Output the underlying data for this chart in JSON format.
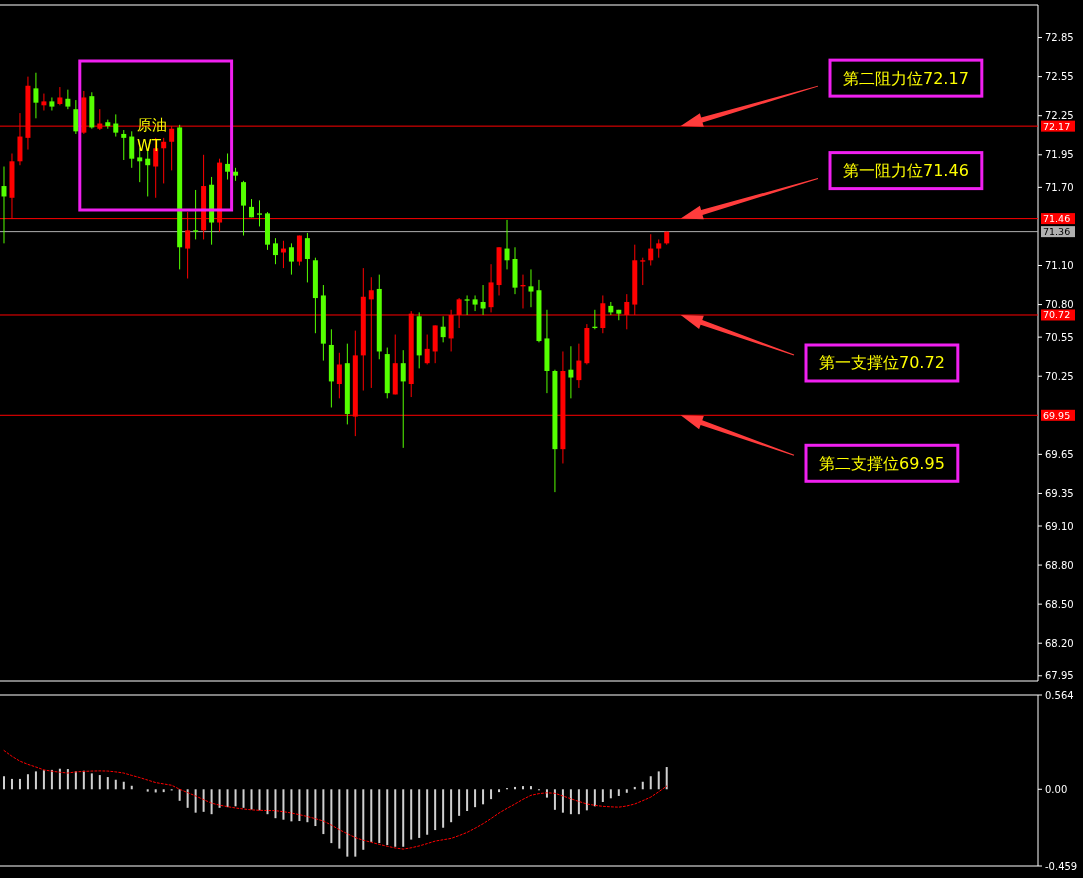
{
  "chart_data": [
    {
      "type": "candlestick",
      "title": "原油",
      "subtitle": "WT",
      "categories": [
        null,
        null,
        null,
        null,
        null,
        null,
        null,
        null,
        null,
        null,
        null,
        null,
        null,
        null,
        null,
        null,
        null,
        null,
        null,
        null,
        null,
        null,
        null,
        null,
        null,
        null,
        null,
        null,
        null,
        null,
        null,
        null,
        null,
        null,
        null,
        null,
        null,
        null,
        null,
        null,
        null,
        null,
        null,
        null,
        null,
        null,
        null,
        null,
        null,
        null,
        null,
        null,
        null,
        null,
        null,
        null,
        null,
        null,
        null,
        null,
        null,
        null,
        null,
        null,
        null,
        null,
        null,
        null,
        null,
        null,
        null,
        null,
        null,
        null,
        null,
        null,
        null,
        null,
        null,
        null,
        null,
        null,
        null,
        null,
        null,
        null,
        null,
        null,
        null,
        null,
        null,
        null,
        null,
        null,
        null,
        null,
        null,
        null,
        null,
        null,
        null,
        null,
        null,
        null,
        null,
        null,
        null,
        null,
        null,
        null,
        null,
        null,
        null,
        null,
        null,
        null,
        null,
        null,
        null,
        null,
        null,
        null,
        null,
        null,
        null,
        null,
        null,
        null,
        null,
        null
      ],
      "ohlc": [
        [
          71.71,
          71.86,
          71.27,
          71.63
        ],
        [
          71.62,
          71.96,
          71.46,
          71.9
        ],
        [
          71.9,
          72.27,
          71.87,
          72.09
        ],
        [
          72.08,
          72.55,
          71.99,
          72.48
        ],
        [
          72.46,
          72.58,
          72.23,
          72.35
        ],
        [
          72.33,
          72.42,
          72.29,
          72.36
        ],
        [
          72.36,
          72.39,
          72.29,
          72.32
        ],
        [
          72.34,
          72.47,
          72.33,
          72.39
        ],
        [
          72.38,
          72.45,
          72.3,
          72.32
        ],
        [
          72.3,
          72.37,
          72.11,
          72.13
        ],
        [
          72.12,
          72.44,
          72.11,
          72.39
        ],
        [
          72.4,
          72.43,
          72.15,
          72.16
        ],
        [
          72.15,
          72.3,
          72.14,
          72.19
        ],
        [
          72.2,
          72.22,
          72.15,
          72.17
        ],
        [
          72.19,
          72.26,
          72.09,
          72.12
        ],
        [
          72.11,
          72.14,
          71.91,
          72.08
        ],
        [
          72.09,
          72.13,
          71.85,
          71.92
        ],
        [
          71.93,
          72.0,
          71.74,
          71.9
        ],
        [
          71.92,
          71.99,
          71.63,
          71.87
        ],
        [
          71.86,
          72.08,
          71.62,
          72.0
        ],
        [
          72.0,
          72.08,
          71.73,
          72.05
        ],
        [
          72.05,
          72.17,
          71.83,
          72.15
        ],
        [
          72.16,
          72.18,
          71.07,
          71.24
        ],
        [
          71.23,
          71.51,
          71.0,
          71.37
        ],
        [
          71.37,
          71.68,
          71.3,
          71.36
        ],
        [
          71.37,
          71.95,
          71.3,
          71.71
        ],
        [
          71.72,
          71.78,
          71.26,
          71.43
        ],
        [
          71.43,
          71.92,
          71.36,
          71.89
        ],
        [
          71.88,
          71.96,
          71.76,
          71.82
        ],
        [
          71.82,
          71.85,
          71.75,
          71.79
        ],
        [
          71.74,
          71.75,
          71.33,
          71.56
        ],
        [
          71.55,
          71.61,
          71.47,
          71.47
        ],
        [
          71.5,
          71.6,
          71.4,
          71.49
        ],
        [
          71.5,
          71.51,
          71.22,
          71.26
        ],
        [
          71.27,
          71.31,
          71.11,
          71.18
        ],
        [
          71.2,
          71.29,
          71.08,
          71.23
        ],
        [
          71.24,
          71.27,
          71.03,
          71.13
        ],
        [
          71.13,
          71.33,
          71.1,
          71.33
        ],
        [
          71.31,
          71.35,
          70.97,
          71.15
        ],
        [
          71.14,
          71.16,
          70.58,
          70.85
        ],
        [
          70.87,
          70.95,
          70.37,
          70.5
        ],
        [
          70.49,
          70.61,
          70.01,
          70.21
        ],
        [
          70.19,
          70.43,
          70.08,
          70.34
        ],
        [
          70.35,
          70.5,
          69.88,
          69.96
        ],
        [
          69.94,
          70.6,
          69.79,
          70.41
        ],
        [
          70.41,
          71.08,
          70.14,
          70.86
        ],
        [
          70.84,
          71.01,
          70.16,
          70.91
        ],
        [
          70.92,
          71.03,
          70.38,
          70.44
        ],
        [
          70.42,
          70.47,
          70.08,
          70.12
        ],
        [
          70.11,
          70.57,
          70.11,
          70.35
        ],
        [
          70.35,
          70.45,
          69.7,
          70.21
        ],
        [
          70.19,
          70.75,
          70.09,
          70.73
        ],
        [
          70.71,
          70.74,
          70.31,
          70.41
        ],
        [
          70.35,
          70.57,
          70.34,
          70.46
        ],
        [
          70.44,
          70.64,
          70.35,
          70.64
        ],
        [
          70.63,
          70.71,
          70.51,
          70.55
        ],
        [
          70.54,
          70.76,
          70.44,
          70.72
        ],
        [
          70.72,
          70.85,
          70.62,
          70.84
        ],
        [
          70.84,
          70.87,
          70.72,
          70.83
        ],
        [
          70.84,
          70.87,
          70.75,
          70.8
        ],
        [
          70.82,
          70.95,
          70.72,
          70.77
        ],
        [
          70.78,
          71.11,
          70.74,
          70.97
        ],
        [
          70.95,
          71.24,
          70.87,
          71.24
        ],
        [
          71.23,
          71.45,
          71.07,
          71.14
        ],
        [
          71.15,
          71.24,
          70.88,
          70.93
        ],
        [
          70.94,
          71.03,
          70.77,
          70.95
        ],
        [
          70.94,
          71.07,
          70.78,
          70.9
        ],
        [
          70.91,
          70.99,
          70.51,
          70.52
        ],
        [
          70.54,
          70.76,
          70.12,
          70.29
        ],
        [
          70.29,
          70.3,
          69.36,
          69.69
        ],
        [
          69.69,
          70.44,
          69.58,
          70.29
        ],
        [
          70.3,
          70.48,
          70.08,
          70.24
        ],
        [
          70.22,
          70.5,
          70.16,
          70.37
        ],
        [
          70.35,
          70.65,
          70.34,
          70.62
        ],
        [
          70.63,
          70.76,
          70.61,
          70.62
        ],
        [
          70.62,
          70.87,
          70.58,
          70.81
        ],
        [
          70.79,
          70.82,
          70.72,
          70.74
        ],
        [
          70.76,
          70.76,
          70.68,
          70.73
        ],
        [
          70.72,
          70.88,
          70.61,
          70.82
        ],
        [
          70.8,
          71.26,
          70.72,
          71.14
        ],
        [
          71.13,
          71.16,
          70.95,
          71.14
        ],
        [
          71.14,
          71.34,
          71.1,
          71.23
        ],
        [
          71.23,
          71.3,
          71.16,
          71.27
        ],
        [
          71.27,
          71.36,
          71.26,
          71.36
        ],
        null,
        null,
        null,
        null,
        null,
        null,
        null,
        null,
        null,
        null,
        null,
        null,
        null,
        null,
        null,
        null,
        null,
        null,
        null,
        null,
        null,
        null,
        null,
        null,
        null,
        null,
        null,
        null,
        null,
        null,
        null,
        null,
        null,
        null,
        null,
        null,
        null,
        null,
        null,
        null,
        null,
        null,
        null,
        null,
        null,
        null
      ],
      "colors": [
        "#55ff00",
        "#ff0000",
        "#ff0000",
        "#ff0000",
        "#55ff00",
        "#ff0000",
        "#55ff00",
        "#ff0000",
        "#55ff00",
        "#55ff00",
        "#ff0000",
        "#55ff00",
        "#ff0000",
        "#55ff00",
        "#55ff00",
        "#55ff00",
        "#55ff00",
        "#55ff00",
        "#55ff00",
        "#ff0000",
        "#ff0000",
        "#ff0000",
        "#55ff00",
        "#ff0000",
        "#55ff00",
        "#ff0000",
        "#55ff00",
        "#ff0000",
        "#55ff00",
        "#55ff00",
        "#55ff00",
        "#55ff00",
        "#55ff00",
        "#55ff00",
        "#55ff00",
        "#ff0000",
        "#55ff00",
        "#ff0000",
        "#55ff00",
        "#55ff00",
        "#55ff00",
        "#55ff00",
        "#ff0000",
        "#55ff00",
        "#ff0000",
        "#ff0000",
        "#ff0000",
        "#55ff00",
        "#55ff00",
        "#ff0000",
        "#55ff00",
        "#ff0000",
        "#55ff00",
        "#ff0000",
        "#ff0000",
        "#55ff00",
        "#ff0000",
        "#ff0000",
        "#55ff00",
        "#55ff00",
        "#55ff00",
        "#ff0000",
        "#ff0000",
        "#55ff00",
        "#55ff00",
        "#ff0000",
        "#55ff00",
        "#55ff00",
        "#55ff00",
        "#55ff00",
        "#ff0000",
        "#55ff00",
        "#ff0000",
        "#ff0000",
        "#55ff00",
        "#ff0000",
        "#55ff00",
        "#55ff00",
        "#ff0000",
        "#ff0000",
        "#ff0000",
        "#ff0000",
        "#ff0000",
        "#ff0000",
        null,
        null,
        null,
        null,
        null,
        null,
        null,
        null,
        null,
        null,
        null,
        null,
        null,
        null,
        null,
        null,
        null,
        null,
        null,
        null,
        null,
        null,
        null,
        null,
        null,
        null,
        null,
        null,
        null,
        null,
        null,
        null,
        null,
        null,
        null,
        null,
        null,
        null,
        null,
        null,
        null,
        null,
        null,
        null,
        null,
        null
      ],
      "ylim": [
        67.91,
        73.1
      ],
      "yticks": [
        72.85,
        72.55,
        72.25,
        71.95,
        {
          "value": 71.7,
          "label": "71.70"
        },
        {
          "value": 71.1,
          "label": "71.10"
        },
        {
          "value": 70.8,
          "label": "70.80"
        },
        70.55,
        70.25,
        69.65,
        69.35,
        {
          "value": 69.1,
          "label": "69.10"
        },
        {
          "value": 68.8,
          "label": "68.80"
        },
        {
          "value": 68.5,
          "label": "68.50"
        },
        {
          "value": 68.2,
          "label": "68.20"
        },
        67.95
      ],
      "ref_lines": [
        {
          "axis": "y",
          "value": 72.17,
          "label": "72.17",
          "color": "#ff0000"
        },
        {
          "axis": "y",
          "value": 71.46,
          "label": "71.46",
          "color": "#ff0000"
        },
        {
          "axis": "y",
          "value": 71.36,
          "label": "71.36",
          "color": "#b0b0b0"
        },
        {
          "axis": "y",
          "value": 70.72,
          "label": "70.72",
          "color": "#ff0000"
        },
        {
          "axis": "y",
          "value": 69.95,
          "label": "69.95",
          "color": "#ff0000"
        }
      ],
      "annotations": [
        {
          "text": "第二阻力位72.17",
          "y": 72.17
        },
        {
          "text": "第一阻力位71.46",
          "y": 71.46
        },
        {
          "text": "第一支撑位70.72",
          "y": 70.72
        },
        {
          "text": "第二支撑位69.95",
          "y": 69.95
        }
      ]
    },
    {
      "type": "bar",
      "categories": [
        null,
        null,
        null,
        null,
        null,
        null,
        null,
        null,
        null,
        null,
        null,
        null,
        null,
        null,
        null,
        null,
        null,
        null,
        null,
        null,
        null,
        null,
        null,
        null,
        null,
        null,
        null,
        null,
        null,
        null,
        null,
        null,
        null,
        null,
        null,
        null,
        null,
        null,
        null,
        null,
        null,
        null,
        null,
        null,
        null,
        null,
        null,
        null,
        null,
        null,
        null,
        null,
        null,
        null,
        null,
        null,
        null,
        null,
        null,
        null,
        null,
        null,
        null,
        null,
        null,
        null,
        null,
        null,
        null,
        null,
        null,
        null,
        null,
        null,
        null,
        null,
        null,
        null,
        null,
        null,
        null,
        null,
        null,
        null,
        null,
        null,
        null,
        null,
        null,
        null,
        null,
        null,
        null,
        null,
        null,
        null,
        null,
        null,
        null,
        null,
        null,
        null,
        null,
        null,
        null,
        null,
        null,
        null,
        null,
        null,
        null,
        null,
        null,
        null,
        null,
        null,
        null,
        null,
        null,
        null,
        null,
        null,
        null,
        null,
        null,
        null,
        null,
        null,
        null,
        null
      ],
      "series": [
        {
          "color": "#d0d0d0",
          "values": [
            0.078,
            0.062,
            0.062,
            0.09,
            0.107,
            0.114,
            0.116,
            0.123,
            0.121,
            0.107,
            0.111,
            0.095,
            0.085,
            0.073,
            0.057,
            0.045,
            0.021,
            null,
            -0.014,
            -0.019,
            -0.017,
            -0.007,
            -0.069,
            -0.111,
            -0.14,
            -0.135,
            -0.149,
            -0.111,
            -0.107,
            -0.102,
            -0.111,
            -0.121,
            -0.126,
            -0.149,
            -0.173,
            -0.182,
            -0.192,
            -0.19,
            -0.197,
            -0.22,
            -0.268,
            -0.322,
            -0.355,
            -0.403,
            -0.403,
            -0.362,
            -0.315,
            -0.322,
            -0.334,
            -0.344,
            -0.344,
            -0.301,
            -0.291,
            -0.272,
            -0.244,
            -0.23,
            -0.197,
            -0.159,
            -0.13,
            -0.107,
            -0.09,
            -0.059,
            -0.017,
            0.007,
            0.014,
            0.019,
            0.019,
            -0.005,
            -0.05,
            -0.123,
            -0.14,
            -0.149,
            -0.149,
            -0.126,
            -0.102,
            -0.076,
            -0.054,
            -0.04,
            -0.021,
            0.014,
            0.045,
            0.078,
            0.107,
            0.133,
            null,
            null,
            null,
            null,
            null,
            null,
            null,
            null,
            null,
            null,
            null,
            null,
            null,
            null,
            null,
            null,
            null,
            null,
            null,
            null,
            null,
            null,
            null,
            null,
            null,
            null,
            null,
            null,
            null,
            null,
            null,
            null,
            null,
            null,
            null,
            null,
            null,
            null,
            null,
            null,
            null,
            null,
            null,
            null,
            null,
            null
          ]
        },
        {
          "type": "line",
          "color": "#ff0000",
          "line_style": "dotted",
          "values": [
            0.232,
            0.197,
            0.168,
            0.149,
            0.133,
            0.116,
            0.108,
            0.102,
            0.097,
            0.104,
            0.107,
            0.109,
            0.11,
            0.109,
            0.104,
            0.097,
            0.083,
            0.07,
            0.055,
            0.04,
            0.032,
            0.024,
            0.0,
            -0.02,
            -0.04,
            -0.062,
            -0.083,
            -0.095,
            -0.104,
            -0.112,
            -0.118,
            -0.123,
            -0.126,
            -0.127,
            -0.128,
            -0.134,
            -0.142,
            -0.152,
            -0.163,
            -0.176,
            -0.19,
            -0.214,
            -0.242,
            -0.266,
            -0.289,
            -0.305,
            -0.317,
            -0.33,
            -0.341,
            -0.351,
            -0.358,
            -0.35,
            -0.339,
            -0.325,
            -0.31,
            -0.302,
            -0.294,
            -0.277,
            -0.258,
            -0.233,
            -0.206,
            -0.175,
            -0.142,
            -0.114,
            -0.088,
            -0.06,
            -0.036,
            -0.026,
            -0.021,
            -0.024,
            -0.04,
            -0.057,
            -0.073,
            -0.088,
            -0.096,
            -0.102,
            -0.105,
            -0.107,
            -0.1,
            -0.088,
            -0.068,
            -0.047,
            -0.015,
            0.019,
            null,
            null,
            null,
            null,
            null,
            null,
            null,
            null,
            null,
            null,
            null,
            null,
            null,
            null,
            null,
            null,
            null,
            null,
            null,
            null,
            null,
            null,
            null,
            null,
            null,
            null,
            null,
            null,
            null,
            null,
            null,
            null,
            null,
            null,
            null,
            null,
            null,
            null,
            null,
            null,
            null,
            null,
            null,
            null,
            null,
            null
          ]
        }
      ],
      "ylim": [
        -0.459,
        0.564
      ],
      "yticks": [
        0.564,
        {
          "value": 0,
          "label": "0.00"
        },
        -0.459
      ]
    }
  ]
}
